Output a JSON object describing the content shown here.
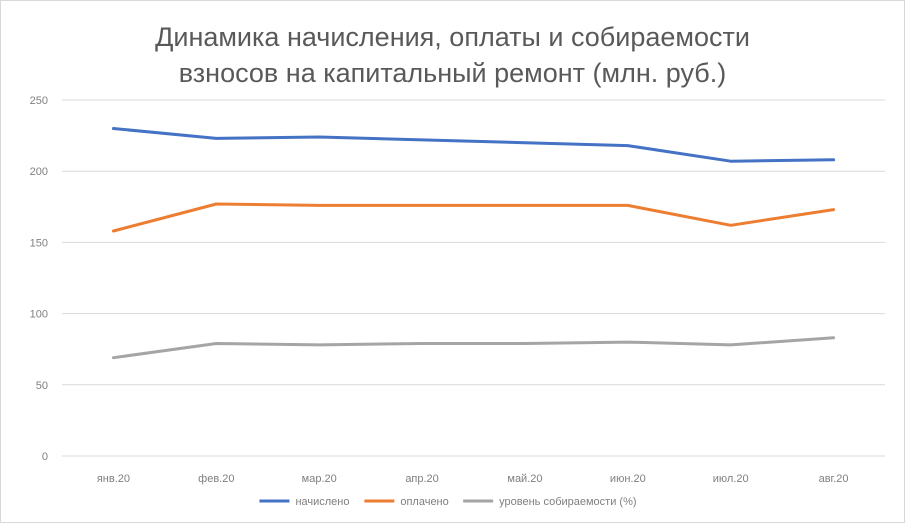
{
  "chart_data": {
    "type": "line",
    "title_line1": "Динамика начисления, оплаты и собираемости",
    "title_line2": "взносов на капитальный ремонт (млн. руб.)",
    "categories": [
      "янв.20",
      "фев.20",
      "мар.20",
      "апр.20",
      "май.20",
      "июн.20",
      "июл.20",
      "авг.20"
    ],
    "ylim": [
      0,
      250
    ],
    "yticks": [
      0,
      50,
      100,
      150,
      200,
      250
    ],
    "grid": true,
    "legend_position": "bottom",
    "series": [
      {
        "name": "начислено",
        "color": "#4472c4",
        "values": [
          230,
          223,
          224,
          222,
          220,
          218,
          207,
          208
        ]
      },
      {
        "name": "оплачено",
        "color": "#ed7d31",
        "values": [
          158,
          177,
          176,
          176,
          176,
          176,
          162,
          173
        ]
      },
      {
        "name": "уровень собираемости (%)",
        "color": "#a5a5a5",
        "values": [
          69,
          79,
          78,
          79,
          79,
          80,
          78,
          83
        ]
      }
    ]
  }
}
